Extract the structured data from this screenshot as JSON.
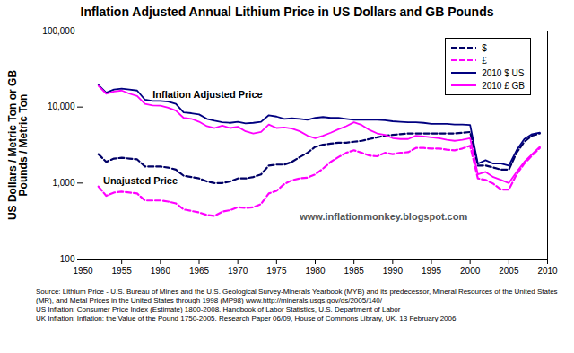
{
  "chart_data": {
    "type": "line",
    "title": "Inflation Adjusted Annual Lithium Price in US Dollars and GB Pounds",
    "y_label": "US Dollars / Metric Ton or GB Pounds / Metric Ton",
    "x": [
      1952,
      1953,
      1954,
      1955,
      1956,
      1957,
      1958,
      1959,
      1960,
      1961,
      1962,
      1963,
      1964,
      1965,
      1966,
      1967,
      1968,
      1969,
      1970,
      1971,
      1972,
      1973,
      1974,
      1975,
      1976,
      1977,
      1978,
      1979,
      1980,
      1981,
      1982,
      1983,
      1984,
      1985,
      1986,
      1987,
      1988,
      1989,
      1990,
      1991,
      1992,
      1993,
      1994,
      1995,
      1996,
      1997,
      1998,
      1999,
      2000,
      2001,
      2002,
      2003,
      2004,
      2005,
      2006,
      2007,
      2008,
      2009
    ],
    "series": [
      {
        "name": "$",
        "color": "#000066",
        "line_style": "dashed",
        "values": [
          2400,
          1900,
          2100,
          2150,
          2100,
          2050,
          1650,
          1650,
          1650,
          1600,
          1500,
          1250,
          1200,
          1150,
          1050,
          1000,
          1000,
          1050,
          1150,
          1150,
          1200,
          1300,
          1700,
          1750,
          1750,
          1900,
          2200,
          2500,
          3000,
          3200,
          3300,
          3400,
          3400,
          3500,
          3600,
          3800,
          4000,
          4200,
          4300,
          4400,
          4500,
          4500,
          4500,
          4500,
          4500,
          4500,
          4500,
          4600,
          4700,
          1700,
          1700,
          1600,
          1500,
          1500,
          2500,
          3500,
          4200,
          4500
        ]
      },
      {
        "name": "£",
        "color": "#ff00ff",
        "line_style": "dashed",
        "values": [
          900,
          680,
          750,
          770,
          750,
          730,
          590,
          590,
          590,
          570,
          540,
          450,
          430,
          410,
          380,
          370,
          420,
          440,
          480,
          470,
          480,
          530,
          730,
          790,
          970,
          1090,
          1150,
          1180,
          1300,
          1550,
          1900,
          2200,
          2500,
          2700,
          2500,
          2300,
          2250,
          2500,
          2400,
          2500,
          2550,
          2900,
          2900,
          2850,
          2850,
          2750,
          2700,
          2850,
          3100,
          1150,
          1100,
          980,
          820,
          820,
          1300,
          1800,
          2300,
          2900
        ]
      },
      {
        "name": "2010 $ US",
        "color": "#000080",
        "line_style": "solid",
        "values": [
          19500,
          15500,
          17000,
          17500,
          17000,
          16500,
          12500,
          12000,
          12000,
          11800,
          11000,
          8500,
          8300,
          8000,
          7000,
          6600,
          6300,
          6200,
          6400,
          6100,
          6200,
          6400,
          7800,
          7500,
          7000,
          7100,
          7000,
          6800,
          7200,
          7400,
          7200,
          7200,
          7000,
          6800,
          6800,
          6800,
          6800,
          6700,
          6500,
          6400,
          6300,
          6300,
          6200,
          6000,
          6000,
          6000,
          5900,
          5900,
          5800,
          1800,
          2000,
          1800,
          1800,
          1700,
          2700,
          3800,
          4400,
          4600
        ]
      },
      {
        "name": "2010 £ GB",
        "color": "#ff00ff",
        "line_style": "solid",
        "values": [
          19000,
          15000,
          16000,
          16500,
          15000,
          14000,
          11000,
          10500,
          10400,
          9800,
          9000,
          7200,
          7000,
          6400,
          5600,
          5300,
          5700,
          5300,
          5500,
          4800,
          4500,
          4700,
          5900,
          5300,
          5400,
          5200,
          4800,
          4200,
          3900,
          4200,
          4600,
          5100,
          5600,
          6300,
          5800,
          5000,
          4500,
          4300,
          3900,
          3800,
          3800,
          4200,
          4100,
          4000,
          3900,
          3700,
          3600,
          3700,
          3900,
          1300,
          1400,
          1200,
          1100,
          1000,
          1400,
          1900,
          2400,
          3000
        ]
      }
    ],
    "xlim": [
      1950,
      2010
    ],
    "xticks": [
      1950,
      1955,
      1960,
      1965,
      1970,
      1975,
      1980,
      1985,
      1990,
      1995,
      2000,
      2005,
      2010
    ],
    "ylim": [
      100,
      100000
    ],
    "yticks": [
      100,
      {
        "value": 1000,
        "label": "1,000"
      },
      {
        "value": 10000,
        "label": "10,000"
      },
      {
        "value": 100000,
        "label": "100,000"
      }
    ],
    "log": "y",
    "grid": false,
    "legend": "top-right",
    "annotations": [
      {
        "text": "Inflation Adjusted Price",
        "x": 1959,
        "y": 14400
      },
      {
        "text": "Unajusted Price",
        "x": 1952.6,
        "y": 1080
      },
      {
        "text": "www.inflationmonkey.blogspot.com",
        "x": 1978,
        "y": 360
      }
    ],
    "source": [
      "Source: Lithium Price - U.S. Bureau of Mines and the U.S. Geological Survey-Minerals Yearbook (MYB) and its predecessor, Mineral Resources of the United States (MR), and Metal Prices in the United States through 1998 (MP98) www.http://minerals.usgs.gov/ds/2005/140/",
      "US Inflation: Consumer Price Index (Estimate) 1800-2008. Handbook of Labor Statistics, U.S. Department of Labor",
      "UK Inflation: Inflation: the Value of the Pound 1750-2005. Research Paper 06/09, House of Commons Library, UK. 13 February 2006"
    ]
  }
}
